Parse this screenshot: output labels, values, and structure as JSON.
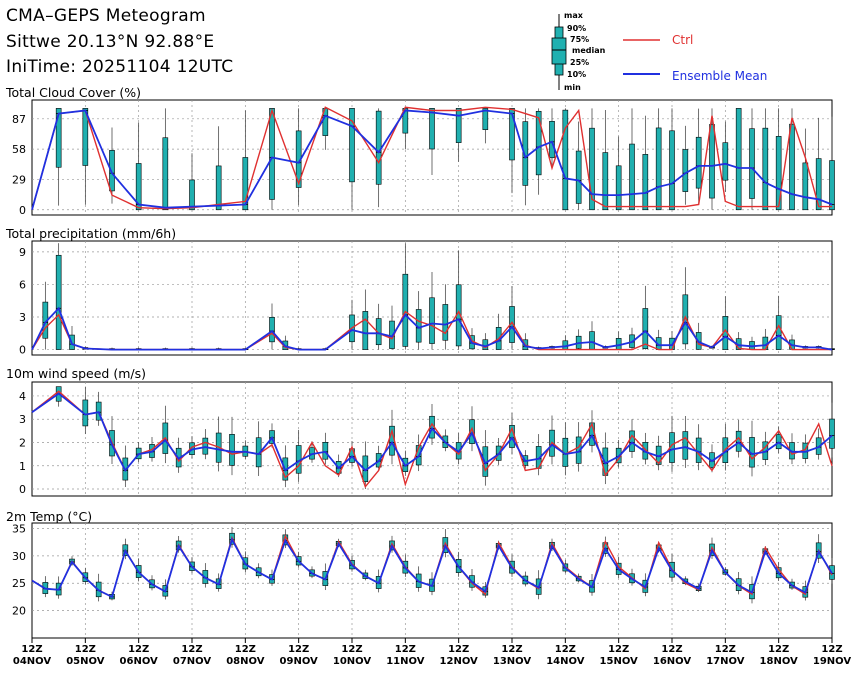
{
  "header": {
    "title": "CMA–GEPS Meteogram",
    "location": "Sittwe 20.13°N 92.88°E",
    "init_time": "IniTime: 20251104 12UTC"
  },
  "legend": {
    "ctrl_label": "Ctrl",
    "mean_label": "Ensemble Mean",
    "ctrl_color": "#e03030",
    "mean_color": "#2030e0",
    "box_color": "#20b0b0",
    "box_stats": [
      "max",
      "90%",
      "75%",
      "median",
      "25%",
      "10%",
      "min"
    ]
  },
  "x_axis": {
    "labels": [
      [
        "12Z",
        "04NOV"
      ],
      [
        "12Z",
        "05NOV"
      ],
      [
        "12Z",
        "06NOV"
      ],
      [
        "12Z",
        "07NOV"
      ],
      [
        "12Z",
        "08NOV"
      ],
      [
        "12Z",
        "09NOV"
      ],
      [
        "12Z",
        "10NOV"
      ],
      [
        "12Z",
        "11NOV"
      ],
      [
        "12Z",
        "12NOV"
      ],
      [
        "12Z",
        "13NOV"
      ],
      [
        "12Z",
        "14NOV"
      ],
      [
        "12Z",
        "15NOV"
      ],
      [
        "12Z",
        "16NOV"
      ],
      [
        "12Z",
        "17NOV"
      ],
      [
        "12Z",
        "18NOV"
      ],
      [
        "12Z",
        "19NOV"
      ]
    ]
  },
  "chart_data": [
    {
      "type": "line",
      "title": "Total Cloud Cover (%)",
      "x_unit": "hours since 2025-11-04 12Z",
      "ylim": [
        -5,
        105
      ],
      "yticks": [
        0,
        29,
        58,
        87
      ],
      "series": [
        {
          "name": "Ctrl",
          "x": [
            0,
            12,
            24,
            36,
            48,
            60,
            72,
            84,
            96,
            108,
            120,
            132,
            144,
            156,
            168,
            180,
            192,
            204,
            216,
            222,
            228,
            234,
            240,
            246,
            252,
            258,
            264,
            270,
            276,
            282,
            288,
            294,
            300,
            306,
            312,
            318,
            324,
            330,
            336,
            342,
            348,
            354,
            360
          ],
          "values": [
            0,
            92,
            95,
            14,
            2,
            1,
            2,
            5,
            8,
            95,
            25,
            98,
            85,
            45,
            98,
            95,
            95,
            98,
            96,
            92,
            88,
            40,
            78,
            95,
            10,
            3,
            3,
            3,
            3,
            3,
            3,
            3,
            5,
            90,
            8,
            3,
            3,
            3,
            3,
            88,
            50,
            3,
            3
          ]
        },
        {
          "name": "Ensemble Mean",
          "x": [
            0,
            12,
            24,
            36,
            48,
            60,
            72,
            84,
            96,
            108,
            120,
            132,
            144,
            156,
            168,
            180,
            192,
            204,
            216,
            222,
            228,
            234,
            240,
            246,
            252,
            258,
            264,
            270,
            276,
            282,
            288,
            294,
            300,
            306,
            312,
            318,
            324,
            330,
            336,
            342,
            348,
            354,
            360
          ],
          "values": [
            0,
            92,
            95,
            35,
            5,
            2,
            3,
            4,
            5,
            50,
            45,
            90,
            80,
            55,
            95,
            93,
            90,
            95,
            92,
            50,
            60,
            65,
            30,
            28,
            15,
            14,
            14,
            15,
            16,
            22,
            25,
            35,
            42,
            42,
            44,
            40,
            40,
            26,
            20,
            15,
            12,
            10,
            5
          ]
        }
      ]
    },
    {
      "type": "line",
      "title": "Total precipitation (mm/6h)",
      "ylim": [
        -0.5,
        10
      ],
      "yticks": [
        0,
        3,
        6,
        9
      ],
      "series": [
        {
          "name": "Ctrl",
          "x": [
            0,
            6,
            12,
            18,
            24,
            36,
            48,
            60,
            72,
            84,
            96,
            108,
            114,
            120,
            132,
            144,
            150,
            156,
            162,
            168,
            174,
            180,
            186,
            192,
            198,
            204,
            210,
            216,
            222,
            228,
            234,
            240,
            246,
            252,
            258,
            264,
            270,
            276,
            282,
            288,
            294,
            300,
            306,
            312,
            318,
            324,
            330,
            336,
            342,
            348,
            354,
            360
          ],
          "values": [
            0,
            2,
            3.2,
            0.5,
            0.1,
            0,
            0,
            0,
            0,
            0,
            0,
            1.5,
            0.2,
            0,
            0,
            2,
            2.8,
            1.5,
            1,
            3.5,
            2.6,
            2.2,
            1.5,
            3.5,
            0.8,
            0.2,
            1,
            2.5,
            0.4,
            0,
            0,
            0,
            0,
            0,
            0,
            0,
            0,
            0.5,
            0,
            0,
            3,
            0.5,
            0.2,
            1.8,
            0.1,
            0,
            0,
            2.2,
            0,
            0,
            0,
            0
          ]
        },
        {
          "name": "Ensemble Mean",
          "x": [
            0,
            6,
            12,
            18,
            24,
            36,
            48,
            60,
            72,
            84,
            96,
            108,
            114,
            120,
            132,
            144,
            150,
            156,
            162,
            168,
            174,
            180,
            186,
            192,
            198,
            204,
            210,
            216,
            222,
            228,
            234,
            240,
            246,
            252,
            258,
            264,
            270,
            276,
            282,
            288,
            294,
            300,
            306,
            312,
            318,
            324,
            330,
            336,
            342,
            348,
            354,
            360
          ],
          "values": [
            0,
            2.5,
            3.8,
            0.5,
            0.1,
            0,
            0,
            0,
            0,
            0,
            0,
            1.7,
            0.3,
            0,
            0,
            1.8,
            1.5,
            1.5,
            1.2,
            3.2,
            2,
            2.4,
            2.3,
            2.8,
            0.6,
            0.3,
            0.8,
            2.1,
            0.3,
            0.1,
            0.2,
            0.3,
            0.6,
            0.7,
            0.2,
            0.4,
            0.7,
            1.7,
            0.4,
            0.4,
            2.5,
            0.7,
            0.2,
            1.2,
            0.4,
            0.3,
            0.4,
            1.3,
            0.4,
            0.2,
            0.2,
            0
          ]
        }
      ]
    },
    {
      "type": "line",
      "title": "10m wind speed (m/s)",
      "ylim": [
        -0.3,
        4.6
      ],
      "yticks": [
        0,
        1,
        2,
        3,
        4
      ],
      "series": [
        {
          "name": "Ctrl",
          "x": [
            0,
            12,
            24,
            30,
            36,
            42,
            48,
            54,
            60,
            66,
            72,
            78,
            84,
            90,
            96,
            102,
            108,
            114,
            120,
            126,
            132,
            138,
            144,
            150,
            156,
            162,
            168,
            174,
            180,
            186,
            192,
            198,
            204,
            210,
            216,
            222,
            228,
            234,
            240,
            246,
            252,
            258,
            264,
            270,
            276,
            282,
            288,
            294,
            300,
            306,
            312,
            318,
            324,
            330,
            336,
            342,
            348,
            354,
            360
          ],
          "values": [
            3.3,
            4.2,
            3.2,
            3.3,
            2,
            0.8,
            1.5,
            1.7,
            2.2,
            1.2,
            1.8,
            2,
            1.8,
            1.5,
            1.6,
            1.5,
            1.9,
            0.5,
            1,
            2,
            1,
            0.6,
            1.8,
            0.1,
            0.8,
            2.5,
            0.2,
            1.8,
            2.8,
            2,
            1.5,
            2.6,
            0.8,
            1.5,
            2.6,
            0.8,
            0.9,
            2,
            1.5,
            1.8,
            2.8,
            0.6,
            1.3,
            2.3,
            1.7,
            1.1,
            1.9,
            2.2,
            1.5,
            0.8,
            1.7,
            2.2,
            1.3,
            1.8,
            2.5,
            1.5,
            1.7,
            2.8,
            1
          ]
        },
        {
          "name": "Ensemble Mean",
          "x": [
            0,
            12,
            24,
            30,
            36,
            42,
            48,
            54,
            60,
            66,
            72,
            78,
            84,
            90,
            96,
            102,
            108,
            114,
            120,
            126,
            132,
            138,
            144,
            150,
            156,
            162,
            168,
            174,
            180,
            186,
            192,
            198,
            204,
            210,
            216,
            222,
            228,
            234,
            240,
            246,
            252,
            258,
            264,
            270,
            276,
            282,
            288,
            294,
            300,
            306,
            312,
            318,
            324,
            330,
            336,
            342,
            348,
            354,
            360
          ],
          "values": [
            3.3,
            4.1,
            3.2,
            3.3,
            1.9,
            0.8,
            1.5,
            1.6,
            2.1,
            1.3,
            1.7,
            1.8,
            1.7,
            1.6,
            1.6,
            1.5,
            2.2,
            0.8,
            1.2,
            1.5,
            1.6,
            0.9,
            1.4,
            0.8,
            1.2,
            2,
            1,
            1.4,
            2.6,
            2,
            1.6,
            2.4,
            1.1,
            1.5,
            2.2,
            1.2,
            1.3,
            1.9,
            1.5,
            1.6,
            2.3,
            1.1,
            1.4,
            2,
            1.6,
            1.4,
            1.7,
            1.8,
            1.6,
            1.2,
            1.6,
            2,
            1.5,
            1.6,
            2,
            1.6,
            1.6,
            1.8,
            2.3
          ]
        }
      ]
    },
    {
      "type": "line",
      "title": "2m Temp (°C)",
      "ylim": [
        15,
        36
      ],
      "yticks": [
        20,
        25,
        30,
        35
      ],
      "series": [
        {
          "name": "Ctrl",
          "x": [
            0,
            6,
            12,
            18,
            24,
            30,
            36,
            42,
            48,
            54,
            60,
            66,
            72,
            78,
            84,
            90,
            96,
            102,
            108,
            114,
            120,
            126,
            132,
            138,
            144,
            150,
            156,
            162,
            168,
            174,
            180,
            186,
            192,
            198,
            204,
            210,
            216,
            222,
            228,
            234,
            240,
            246,
            252,
            258,
            264,
            270,
            276,
            282,
            288,
            294,
            300,
            306,
            312,
            318,
            324,
            330,
            336,
            342,
            348,
            354,
            360
          ],
          "values": [
            25.5,
            24,
            23.8,
            29,
            26,
            23.7,
            22.5,
            31,
            27,
            24.8,
            23.5,
            32,
            28,
            26,
            24.8,
            33.3,
            28.5,
            27,
            25.7,
            33.6,
            29,
            26.8,
            25.7,
            32.6,
            28.5,
            26.3,
            25,
            32.2,
            28,
            25.3,
            24.5,
            32.3,
            28,
            25,
            23,
            32.4,
            28,
            25.5,
            24,
            32.3,
            28,
            26,
            24.3,
            32.6,
            28,
            26,
            24,
            32.4,
            27.5,
            25,
            23.8,
            31.5,
            27,
            24.5,
            23,
            31.5,
            27.5,
            24.5,
            23,
            31,
            26.5
          ]
        },
        {
          "name": "Ensemble Mean",
          "x": [
            0,
            6,
            12,
            18,
            24,
            30,
            36,
            42,
            48,
            54,
            60,
            66,
            72,
            78,
            84,
            90,
            96,
            102,
            108,
            114,
            120,
            126,
            132,
            138,
            144,
            150,
            156,
            162,
            168,
            174,
            180,
            186,
            192,
            198,
            204,
            210,
            216,
            222,
            228,
            234,
            240,
            246,
            252,
            258,
            264,
            270,
            276,
            282,
            288,
            294,
            300,
            306,
            312,
            318,
            324,
            330,
            336,
            342,
            348,
            354,
            360
          ],
          "values": [
            25.5,
            24,
            23.8,
            28.9,
            26,
            23.7,
            22.5,
            30.9,
            27,
            24.8,
            23.5,
            31.8,
            28,
            26,
            24.8,
            33,
            28.5,
            27,
            25.7,
            32.8,
            29,
            26.8,
            25.7,
            32.2,
            28.3,
            26.3,
            25,
            31.8,
            27.8,
            25.3,
            24.5,
            31.8,
            28,
            25.2,
            23.5,
            31.8,
            27.8,
            25.5,
            24.2,
            31.8,
            27.8,
            25.8,
            24.3,
            31.3,
            27.5,
            25.8,
            24.3,
            31.4,
            27.3,
            25.3,
            24,
            31,
            27,
            24.6,
            23.3,
            30.8,
            26.8,
            24.6,
            23.3,
            30.8,
            26.8
          ]
        }
      ]
    }
  ]
}
